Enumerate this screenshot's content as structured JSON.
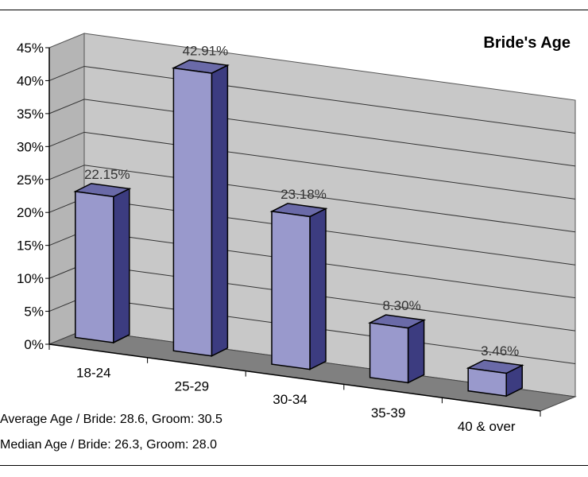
{
  "chart_data": {
    "type": "bar",
    "title": "Bride's Age",
    "categories": [
      "18-24",
      "25-29",
      "30-34",
      "35-39",
      "40 & over"
    ],
    "values": [
      22.15,
      42.91,
      23.18,
      8.3,
      3.46
    ],
    "data_labels": [
      "22.15%",
      "42.91%",
      "23.18%",
      "8.30%",
      "3.46%"
    ],
    "yticks": [
      "0%",
      "5%",
      "10%",
      "15%",
      "20%",
      "25%",
      "30%",
      "35%",
      "40%",
      "45%"
    ],
    "ylim": [
      0,
      45
    ],
    "grid": true,
    "three_d": true,
    "colors": {
      "bar_front": "#9999cc",
      "bar_top": "#6a6aa8",
      "bar_side": "#3c3c80",
      "wall": "#c8c8c8",
      "floor": "#808080"
    }
  },
  "notes": {
    "average": "Average Age / Bride: 28.6, Groom: 30.5",
    "median": "Median Age / Bride: 26.3, Groom: 28.0"
  }
}
